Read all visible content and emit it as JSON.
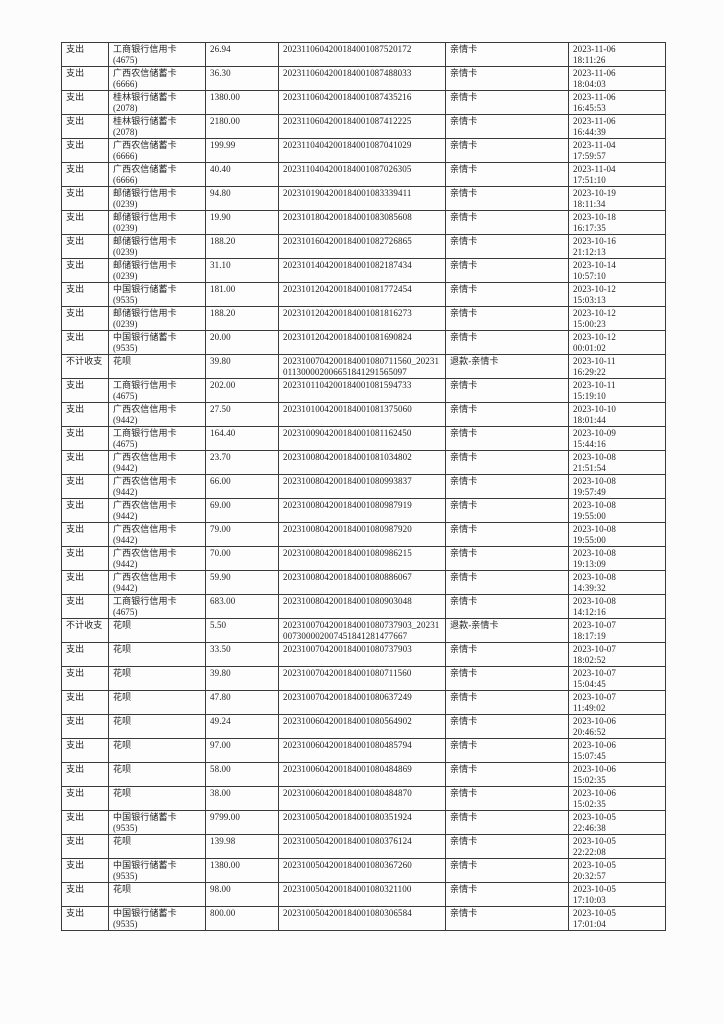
{
  "colors": {
    "page_background": "#fcfcfc",
    "table_border": "#3a3a3a",
    "text": "#1f1f1f"
  },
  "table": {
    "rows": [
      {
        "flow": "支出",
        "card": "工商银行信用卡",
        "card_no": "(4675)",
        "amount": "26.94",
        "order": "2023110604200184001087520172",
        "remark": "亲情卡",
        "date": "2023-11-06",
        "time": "18:11:26"
      },
      {
        "flow": "支出",
        "card": "广西农信储蓄卡",
        "card_no": "(6666)",
        "amount": "36.30",
        "order": "2023110604200184001087488033",
        "remark": "亲情卡",
        "date": "2023-11-06",
        "time": "18:04:03"
      },
      {
        "flow": "支出",
        "card": "桂林银行储蓄卡",
        "card_no": "(2078)",
        "amount": "1380.00",
        "order": "2023110604200184001087435216",
        "remark": "亲情卡",
        "date": "2023-11-06",
        "time": "16:45:53"
      },
      {
        "flow": "支出",
        "card": "桂林银行储蓄卡",
        "card_no": "(2078)",
        "amount": "2180.00",
        "order": "2023110604200184001087412225",
        "remark": "亲情卡",
        "date": "2023-11-06",
        "time": "16:44:39"
      },
      {
        "flow": "支出",
        "card": "广西农信储蓄卡",
        "card_no": "(6666)",
        "amount": "199.99",
        "order": "2023110404200184001087041029",
        "remark": "亲情卡",
        "date": "2023-11-04",
        "time": "17:59:57"
      },
      {
        "flow": "支出",
        "card": "广西农信储蓄卡",
        "card_no": "(6666)",
        "amount": "40.40",
        "order": "2023110404200184001087026305",
        "remark": "亲情卡",
        "date": "2023-11-04",
        "time": "17:51:10"
      },
      {
        "flow": "支出",
        "card": "邮储银行信用卡",
        "card_no": "(0239)",
        "amount": "94.80",
        "order": "2023101904200184001083339411",
        "remark": "亲情卡",
        "date": "2023-10-19",
        "time": "18:11:34"
      },
      {
        "flow": "支出",
        "card": "邮储银行信用卡",
        "card_no": "(0239)",
        "amount": "19.90",
        "order": "2023101804200184001083085608",
        "remark": "亲情卡",
        "date": "2023-10-18",
        "time": "16:17:35"
      },
      {
        "flow": "支出",
        "card": "邮储银行信用卡",
        "card_no": "(0239)",
        "amount": "188.20",
        "order": "2023101604200184001082726865",
        "remark": "亲情卡",
        "date": "2023-10-16",
        "time": "21:12:13"
      },
      {
        "flow": "支出",
        "card": "邮储银行信用卡",
        "card_no": "(0239)",
        "amount": "31.10",
        "order": "2023101404200184001082187434",
        "remark": "亲情卡",
        "date": "2023-10-14",
        "time": "10:57:10"
      },
      {
        "flow": "支出",
        "card": "中国银行储蓄卡",
        "card_no": "(9535)",
        "amount": "181.00",
        "order": "2023101204200184001081772454",
        "remark": "亲情卡",
        "date": "2023-10-12",
        "time": "15:03:13"
      },
      {
        "flow": "支出",
        "card": "邮储银行信用卡",
        "card_no": "(0239)",
        "amount": "188.20",
        "order": "2023101204200184001081816273",
        "remark": "亲情卡",
        "date": "2023-10-12",
        "time": "15:00:23"
      },
      {
        "flow": "支出",
        "card": "中国银行储蓄卡",
        "card_no": "(9535)",
        "amount": "20.00",
        "order": "2023101204200184001081690824",
        "remark": "亲情卡",
        "date": "2023-10-12",
        "time": "00:01:02"
      },
      {
        "flow": "不计收支",
        "card": "花呗",
        "card_no": "",
        "amount": "39.80",
        "order": "2023100704200184001080711560_20231011300002006651841291565097",
        "remark": "退款-亲情卡",
        "date": "2023-10-11",
        "time": "16:29:22"
      },
      {
        "flow": "支出",
        "card": "工商银行信用卡",
        "card_no": "(4675)",
        "amount": "202.00",
        "order": "2023101104200184001081594733",
        "remark": "亲情卡",
        "date": "2023-10-11",
        "time": "15:19:10"
      },
      {
        "flow": "支出",
        "card": "广西农信信用卡",
        "card_no": "(9442)",
        "amount": "27.50",
        "order": "2023101004200184001081375060",
        "remark": "亲情卡",
        "date": "2023-10-10",
        "time": "18:01:44"
      },
      {
        "flow": "支出",
        "card": "工商银行信用卡",
        "card_no": "(4675)",
        "amount": "164.40",
        "order": "2023100904200184001081162450",
        "remark": "亲情卡",
        "date": "2023-10-09",
        "time": "15:44:16"
      },
      {
        "flow": "支出",
        "card": "广西农信信用卡",
        "card_no": "(9442)",
        "amount": "23.70",
        "order": "2023100804200184001081034802",
        "remark": "亲情卡",
        "date": "2023-10-08",
        "time": "21:51:54"
      },
      {
        "flow": "支出",
        "card": "广西农信信用卡",
        "card_no": "(9442)",
        "amount": "66.00",
        "order": "2023100804200184001080993837",
        "remark": "亲情卡",
        "date": "2023-10-08",
        "time": "19:57:49"
      },
      {
        "flow": "支出",
        "card": "广西农信信用卡",
        "card_no": "(9442)",
        "amount": "69.00",
        "order": "2023100804200184001080987919",
        "remark": "亲情卡",
        "date": "2023-10-08",
        "time": "19:55:00"
      },
      {
        "flow": "支出",
        "card": "广西农信信用卡",
        "card_no": "(9442)",
        "amount": "79.00",
        "order": "2023100804200184001080987920",
        "remark": "亲情卡",
        "date": "2023-10-08",
        "time": "19:55:00"
      },
      {
        "flow": "支出",
        "card": "广西农信信用卡",
        "card_no": "(9442)",
        "amount": "70.00",
        "order": "2023100804200184001080986215",
        "remark": "亲情卡",
        "date": "2023-10-08",
        "time": "19:13:09"
      },
      {
        "flow": "支出",
        "card": "广西农信信用卡",
        "card_no": "(9442)",
        "amount": "59.90",
        "order": "2023100804200184001080886067",
        "remark": "亲情卡",
        "date": "2023-10-08",
        "time": "14:39:32"
      },
      {
        "flow": "支出",
        "card": "工商银行信用卡",
        "card_no": "(4675)",
        "amount": "683.00",
        "order": "2023100804200184001080903048",
        "remark": "亲情卡",
        "date": "2023-10-08",
        "time": "14:12:16"
      },
      {
        "flow": "不计收支",
        "card": "花呗",
        "card_no": "",
        "amount": "5.50",
        "order": "2023100704200184001080737903_20231007300002007451841281477667",
        "remark": "退款-亲情卡",
        "date": "2023-10-07",
        "time": "18:17:19"
      },
      {
        "flow": "支出",
        "card": "花呗",
        "card_no": "",
        "amount": "33.50",
        "order": "2023100704200184001080737903",
        "remark": "亲情卡",
        "date": "2023-10-07",
        "time": "18:02:52"
      },
      {
        "flow": "支出",
        "card": "花呗",
        "card_no": "",
        "amount": "39.80",
        "order": "2023100704200184001080711560",
        "remark": "亲情卡",
        "date": "2023-10-07",
        "time": "15:04:45"
      },
      {
        "flow": "支出",
        "card": "花呗",
        "card_no": "",
        "amount": "47.80",
        "order": "2023100704200184001080637249",
        "remark": "亲情卡",
        "date": "2023-10-07",
        "time": "11:49:02"
      },
      {
        "flow": "支出",
        "card": "花呗",
        "card_no": "",
        "amount": "49.24",
        "order": "2023100604200184001080564902",
        "remark": "亲情卡",
        "date": "2023-10-06",
        "time": "20:46:52"
      },
      {
        "flow": "支出",
        "card": "花呗",
        "card_no": "",
        "amount": "97.00",
        "order": "2023100604200184001080485794",
        "remark": "亲情卡",
        "date": "2023-10-06",
        "time": "15:07:45"
      },
      {
        "flow": "支出",
        "card": "花呗",
        "card_no": "",
        "amount": "58.00",
        "order": "2023100604200184001080484869",
        "remark": "亲情卡",
        "date": "2023-10-06",
        "time": "15:02:35"
      },
      {
        "flow": "支出",
        "card": "花呗",
        "card_no": "",
        "amount": "38.00",
        "order": "2023100604200184001080484870",
        "remark": "亲情卡",
        "date": "2023-10-06",
        "time": "15:02:35"
      },
      {
        "flow": "支出",
        "card": "中国银行储蓄卡",
        "card_no": "(9535)",
        "amount": "9799.00",
        "order": "2023100504200184001080351924",
        "remark": "亲情卡",
        "date": "2023-10-05",
        "time": "22:46:38"
      },
      {
        "flow": "支出",
        "card": "花呗",
        "card_no": "",
        "amount": "139.98",
        "order": "2023100504200184001080376124",
        "remark": "亲情卡",
        "date": "2023-10-05",
        "time": "22:22:08"
      },
      {
        "flow": "支出",
        "card": "中国银行储蓄卡",
        "card_no": "(9535)",
        "amount": "1380.00",
        "order": "2023100504200184001080367260",
        "remark": "亲情卡",
        "date": "2023-10-05",
        "time": "20:32:57"
      },
      {
        "flow": "支出",
        "card": "花呗",
        "card_no": "",
        "amount": "98.00",
        "order": "2023100504200184001080321100",
        "remark": "亲情卡",
        "date": "2023-10-05",
        "time": "17:10:03"
      },
      {
        "flow": "支出",
        "card": "中国银行储蓄卡",
        "card_no": "(9535)",
        "amount": "800.00",
        "order": "2023100504200184001080306584",
        "remark": "亲情卡",
        "date": "2023-10-05",
        "time": "17:01:04"
      }
    ]
  }
}
